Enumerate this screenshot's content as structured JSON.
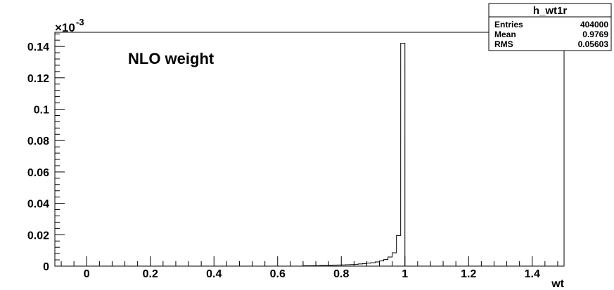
{
  "chart_data": {
    "type": "bar",
    "title": "NLO weight",
    "xlabel": "wt",
    "ylabel": "",
    "y_multiplier_label": "×10",
    "y_multiplier_exp": "-3",
    "xlim": [
      -0.1,
      1.5
    ],
    "ylim": [
      0,
      0.149
    ],
    "x_ticks": [
      {
        "value": 0,
        "label": "0"
      },
      {
        "value": 0.2,
        "label": "0.2"
      },
      {
        "value": 0.4,
        "label": "0.4"
      },
      {
        "value": 0.6,
        "label": "0.6"
      },
      {
        "value": 0.8,
        "label": "0.8"
      },
      {
        "value": 1.0,
        "label": "1"
      },
      {
        "value": 1.2,
        "label": "1.2"
      },
      {
        "value": 1.4,
        "label": "1.4"
      }
    ],
    "y_ticks": [
      {
        "value": 0,
        "label": "0"
      },
      {
        "value": 0.02,
        "label": "0.02"
      },
      {
        "value": 0.04,
        "label": "0.04"
      },
      {
        "value": 0.06,
        "label": "0.06"
      },
      {
        "value": 0.08,
        "label": "0.08"
      },
      {
        "value": 0.1,
        "label": "0.1"
      },
      {
        "value": 0.12,
        "label": "0.12"
      },
      {
        "value": 0.14,
        "label": "0.14"
      }
    ],
    "bin_width": 0.0133,
    "bins": [
      {
        "x": 0.68,
        "y": 0.0002
      },
      {
        "x": 0.6933,
        "y": 0.0002
      },
      {
        "x": 0.7067,
        "y": 0.0003
      },
      {
        "x": 0.72,
        "y": 0.0003
      },
      {
        "x": 0.7333,
        "y": 0.0004
      },
      {
        "x": 0.7467,
        "y": 0.0004
      },
      {
        "x": 0.76,
        "y": 0.0005
      },
      {
        "x": 0.7733,
        "y": 0.0006
      },
      {
        "x": 0.7867,
        "y": 0.0007
      },
      {
        "x": 0.8,
        "y": 0.0008
      },
      {
        "x": 0.8133,
        "y": 0.0009
      },
      {
        "x": 0.8267,
        "y": 0.001
      },
      {
        "x": 0.84,
        "y": 0.0012
      },
      {
        "x": 0.8533,
        "y": 0.0014
      },
      {
        "x": 0.8667,
        "y": 0.0016
      },
      {
        "x": 0.88,
        "y": 0.0019
      },
      {
        "x": 0.8933,
        "y": 0.0022
      },
      {
        "x": 0.9067,
        "y": 0.0027
      },
      {
        "x": 0.92,
        "y": 0.0033
      },
      {
        "x": 0.9333,
        "y": 0.0042
      },
      {
        "x": 0.9467,
        "y": 0.0058
      },
      {
        "x": 0.96,
        "y": 0.0085
      },
      {
        "x": 0.9733,
        "y": 0.0195
      },
      {
        "x": 0.9867,
        "y": 0.142
      }
    ],
    "stats_box": {
      "name": "h_wt1r",
      "rows": [
        {
          "label": "Entries",
          "value": "404000"
        },
        {
          "label": "Mean",
          "value": "0.9769"
        },
        {
          "label": "RMS",
          "value": "0.05603"
        }
      ]
    }
  }
}
